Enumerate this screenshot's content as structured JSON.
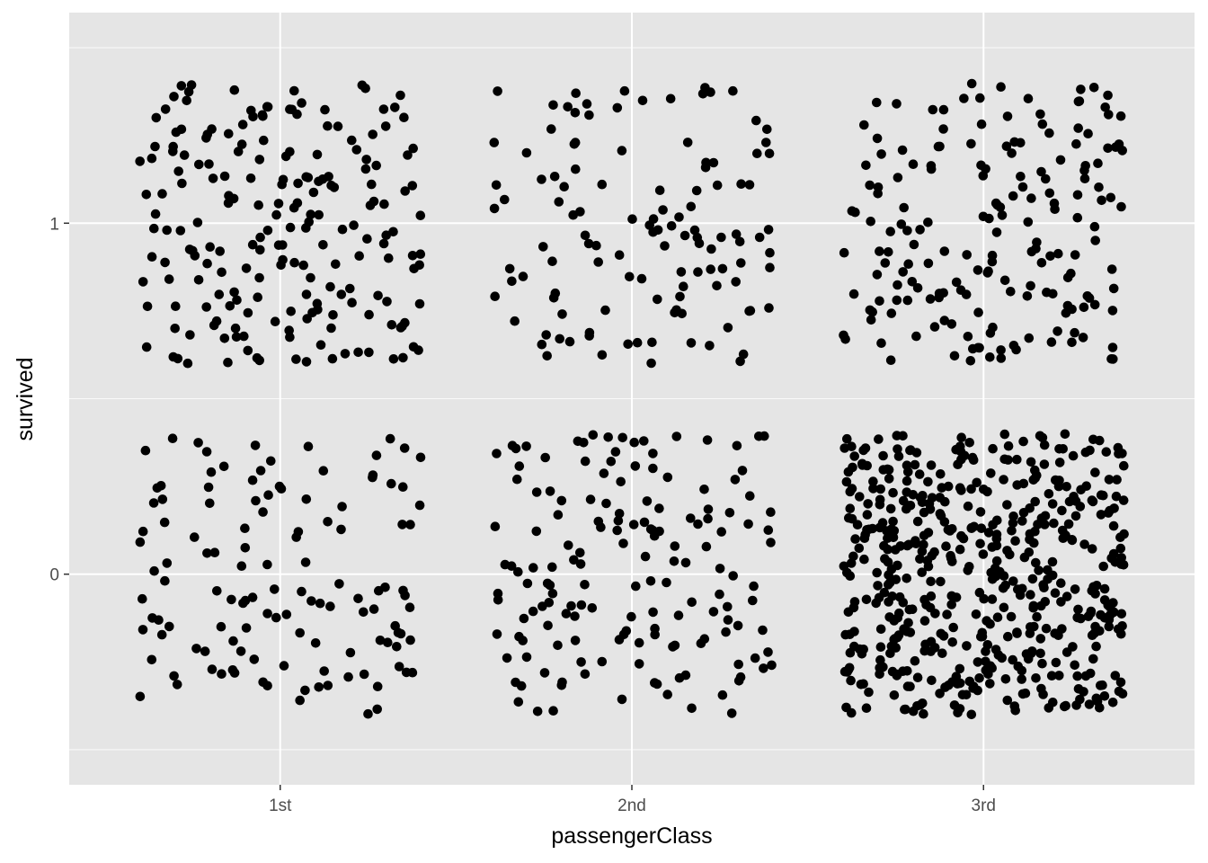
{
  "chart_data": {
    "type": "scatter",
    "title": "",
    "xlabel": "passengerClass",
    "ylabel": "survived",
    "x_categories": [
      "1st",
      "2nd",
      "3rd"
    ],
    "y_ticks": [
      0,
      1
    ],
    "ylim": [
      -0.6,
      1.6
    ],
    "grid": true,
    "jitter": {
      "width": 0.4,
      "height": 0.4
    },
    "groups": [
      {
        "class": "1st",
        "survived": 1,
        "count": 200
      },
      {
        "class": "1st",
        "survived": 0,
        "count": 123
      },
      {
        "class": "2nd",
        "survived": 1,
        "count": 119
      },
      {
        "class": "2nd",
        "survived": 0,
        "count": 158
      },
      {
        "class": "3rd",
        "survived": 1,
        "count": 181
      },
      {
        "class": "3rd",
        "survived": 0,
        "count": 528
      }
    ],
    "colors": {
      "panel": "#e5e5e5",
      "grid": "#ffffff",
      "point": "#000000",
      "axis_text": "#4d4d4d"
    }
  }
}
